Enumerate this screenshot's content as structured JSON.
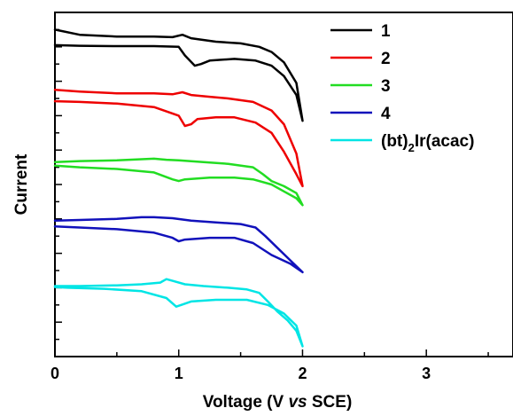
{
  "chart_data": {
    "type": "line",
    "xlabel_parts": [
      "Voltage (V ",
      "vs",
      " SCE)"
    ],
    "ylabel": "Current",
    "xlim": [
      0,
      3.7
    ],
    "ylim": [
      0,
      10
    ],
    "x_ticks": [
      "0",
      "1",
      "2",
      "3"
    ],
    "y_ticks_shown": false,
    "grid": false,
    "legend_position": "top-right",
    "series": [
      {
        "name": "1",
        "color": "#000000",
        "x": [
          0,
          0.2,
          0.5,
          0.8,
          0.95,
          1.03,
          1.1,
          1.3,
          1.5,
          1.65,
          1.75,
          1.85,
          1.95,
          2.0,
          1.95,
          1.85,
          1.75,
          1.62,
          1.45,
          1.25,
          1.18,
          1.13,
          1.05,
          1.0,
          0.8,
          0.5,
          0.2,
          0
        ],
        "y": [
          9.5,
          9.35,
          9.3,
          9.3,
          9.28,
          9.35,
          9.25,
          9.15,
          9.1,
          9.0,
          8.85,
          8.55,
          7.95,
          6.85,
          7.6,
          8.15,
          8.45,
          8.6,
          8.65,
          8.6,
          8.5,
          8.45,
          8.75,
          9.0,
          9.02,
          9.02,
          9.03,
          9.05
        ]
      },
      {
        "name": "2",
        "color": "#ee0000",
        "x": [
          0,
          0.2,
          0.5,
          0.8,
          0.95,
          1.03,
          1.1,
          1.25,
          1.4,
          1.6,
          1.75,
          1.85,
          1.95,
          2.0,
          1.95,
          1.85,
          1.75,
          1.62,
          1.45,
          1.3,
          1.15,
          1.1,
          1.05,
          1.0,
          0.8,
          0.5,
          0.2,
          0
        ],
        "y": [
          7.75,
          7.7,
          7.65,
          7.65,
          7.62,
          7.68,
          7.6,
          7.55,
          7.5,
          7.4,
          7.15,
          6.75,
          5.9,
          4.95,
          5.3,
          5.95,
          6.5,
          6.8,
          6.95,
          6.95,
          6.9,
          6.75,
          6.7,
          7.0,
          7.25,
          7.35,
          7.4,
          7.42
        ]
      },
      {
        "name": "3",
        "color": "#22dd22",
        "x": [
          0,
          0.2,
          0.5,
          0.8,
          0.9,
          1.0,
          1.2,
          1.4,
          1.6,
          1.68,
          1.75,
          1.85,
          1.95,
          2.0,
          1.95,
          1.85,
          1.75,
          1.6,
          1.45,
          1.25,
          1.05,
          1.0,
          0.95,
          0.8,
          0.5,
          0.2,
          0
        ],
        "y": [
          5.65,
          5.68,
          5.7,
          5.75,
          5.72,
          5.7,
          5.65,
          5.6,
          5.5,
          5.3,
          5.1,
          4.95,
          4.75,
          4.4,
          4.6,
          4.8,
          5.0,
          5.15,
          5.2,
          5.2,
          5.15,
          5.1,
          5.15,
          5.35,
          5.45,
          5.5,
          5.55
        ]
      },
      {
        "name": "4",
        "color": "#1111bb",
        "x": [
          0,
          0.2,
          0.5,
          0.7,
          0.8,
          0.95,
          1.1,
          1.3,
          1.5,
          1.62,
          1.7,
          1.8,
          1.9,
          2.0,
          1.9,
          1.75,
          1.6,
          1.45,
          1.25,
          1.05,
          1.0,
          0.95,
          0.8,
          0.5,
          0.2,
          0
        ],
        "y": [
          3.95,
          3.97,
          4.0,
          4.05,
          4.05,
          4.02,
          3.95,
          3.9,
          3.85,
          3.75,
          3.5,
          3.15,
          2.8,
          2.45,
          2.7,
          2.95,
          3.3,
          3.45,
          3.45,
          3.4,
          3.35,
          3.45,
          3.6,
          3.7,
          3.75,
          3.78
        ]
      },
      {
        "name": "(bt)₂Ir(acac)",
        "name_parts": [
          "(bt)",
          "2",
          "Ir(acac)"
        ],
        "color": "#00e5e5",
        "x": [
          0,
          0.2,
          0.5,
          0.7,
          0.85,
          0.9,
          0.95,
          1.05,
          1.2,
          1.4,
          1.55,
          1.65,
          1.72,
          1.8,
          1.88,
          1.95,
          2.0,
          1.95,
          1.85,
          1.72,
          1.55,
          1.3,
          1.1,
          1.02,
          0.98,
          0.9,
          0.7,
          0.4,
          0.1,
          0
        ],
        "y": [
          2.05,
          2.05,
          2.07,
          2.1,
          2.15,
          2.25,
          2.2,
          2.1,
          2.05,
          2.0,
          1.95,
          1.85,
          1.6,
          1.3,
          1.05,
          0.75,
          0.3,
          0.9,
          1.25,
          1.5,
          1.65,
          1.65,
          1.6,
          1.5,
          1.45,
          1.7,
          1.9,
          1.97,
          2.0,
          2.02
        ]
      }
    ]
  }
}
